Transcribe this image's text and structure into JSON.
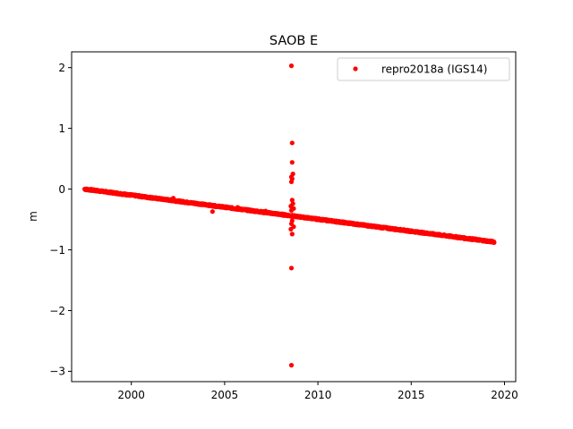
{
  "chart_data": {
    "type": "scatter",
    "title": "SAOB E",
    "xlabel": "",
    "ylabel": "m",
    "xlim": [
      1996.8,
      2020.6
    ],
    "ylim": [
      -3.17,
      2.26
    ],
    "xticks": [
      2000,
      2005,
      2010,
      2015,
      2020
    ],
    "yticks": [
      -3,
      -2,
      -1,
      0,
      1,
      2
    ],
    "grid": false,
    "legend": {
      "placement": "top-right",
      "entries": [
        "repro2018a (IGS14)"
      ]
    },
    "colors": {
      "series": "#ff0000",
      "axis": "#000000",
      "background": "#ffffff"
    },
    "series": [
      {
        "name": "repro2018a (IGS14)",
        "marker": "dot",
        "trend": {
          "x_start": 1997.5,
          "y_start": 0.0,
          "x_end": 2019.45,
          "y_end": -0.87,
          "step": 0.015,
          "noise": 0.012
        },
        "points": [
          [
            2008.58,
            2.03
          ],
          [
            2008.62,
            0.76
          ],
          [
            2008.62,
            0.44
          ],
          [
            2008.66,
            0.25
          ],
          [
            2008.58,
            0.2
          ],
          [
            2008.62,
            0.17
          ],
          [
            2008.58,
            0.12
          ],
          [
            2008.62,
            -0.18
          ],
          [
            2008.66,
            -0.24
          ],
          [
            2008.55,
            -0.28
          ],
          [
            2008.7,
            -0.32
          ],
          [
            2008.58,
            -0.35
          ],
          [
            2008.62,
            -0.52
          ],
          [
            2008.58,
            -0.57
          ],
          [
            2008.7,
            -0.62
          ],
          [
            2008.55,
            -0.66
          ],
          [
            2008.62,
            -0.74
          ],
          [
            2008.58,
            -1.3
          ],
          [
            2008.58,
            -2.9
          ],
          [
            2004.35,
            -0.37
          ],
          [
            2005.7,
            -0.3
          ],
          [
            2002.25,
            -0.15
          ],
          [
            2007.2,
            -0.36
          ],
          [
            2009.1,
            -0.45
          ]
        ]
      }
    ]
  }
}
